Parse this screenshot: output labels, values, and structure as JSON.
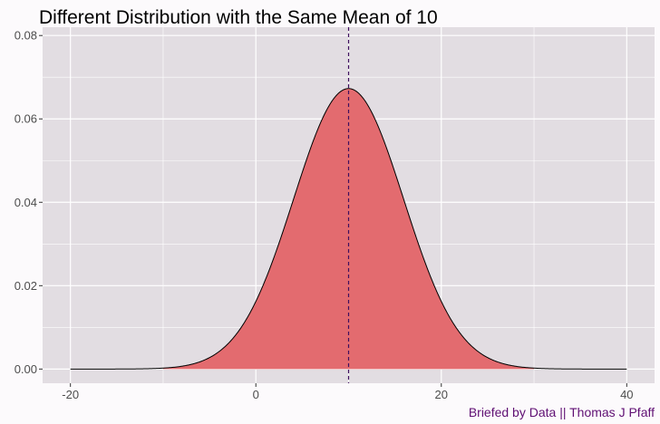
{
  "chart_data": {
    "type": "area",
    "title": "Different Distribution with the Same Mean of 10",
    "caption": "Briefed by Data || Thomas J Pfaff",
    "xlabel": "",
    "ylabel": "",
    "xlim": [
      -23,
      43
    ],
    "ylim": [
      -0.0034,
      0.082
    ],
    "x_ticks": [
      -20,
      0,
      20,
      40
    ],
    "x_tick_labels": [
      "-20",
      "0",
      "20",
      "40"
    ],
    "y_ticks": [
      0.0,
      0.02,
      0.04,
      0.06,
      0.08
    ],
    "y_tick_labels": [
      "0.00",
      "0.02",
      "0.04",
      "0.06",
      "0.08"
    ],
    "grid": true,
    "legend": "none",
    "series": [
      {
        "distribution": "normal",
        "mean": 10,
        "sd": 5.93,
        "x_range": [
          -20,
          40
        ],
        "fill_range": [
          -10,
          30
        ],
        "peak_density": 0.0673
      }
    ],
    "annotations": [
      {
        "type": "vline",
        "x": 10,
        "style": "dashed",
        "color": "#3f0f5f"
      }
    ],
    "colors": {
      "panel_background": "#e2dde2",
      "grid": "#ffffff",
      "fill": "#e36b6f",
      "curve": "#000000",
      "caption": "#5f0f73"
    }
  }
}
